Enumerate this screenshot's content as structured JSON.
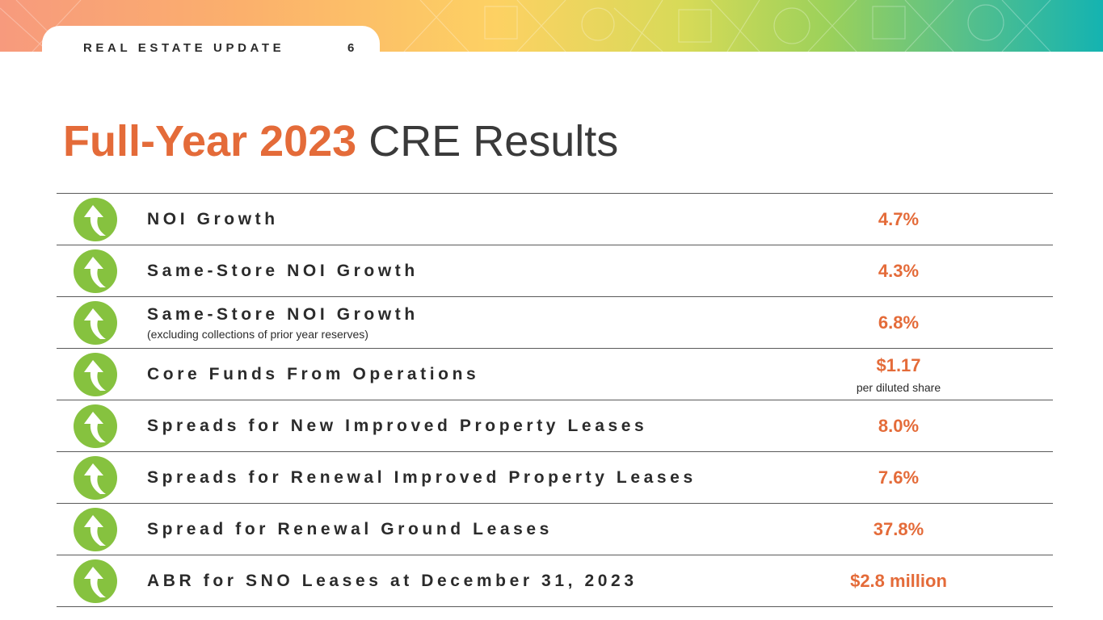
{
  "header": {
    "section_label": "REAL ESTATE UPDATE",
    "page_number": "6"
  },
  "title": {
    "highlight": "Full-Year 2023",
    "rest": "CRE Results"
  },
  "colors": {
    "accent": "#e46b39",
    "icon_green": "#86c23f",
    "text": "#2b2b2b"
  },
  "metrics": [
    {
      "label": "NOI Growth",
      "sublabel": "",
      "value": "4.7%",
      "note": "",
      "icon": "up-arrow-icon"
    },
    {
      "label": "Same-Store NOI Growth",
      "sublabel": "",
      "value": "4.3%",
      "note": "",
      "icon": "up-arrow-icon"
    },
    {
      "label": "Same-Store NOI Growth",
      "sublabel": "(excluding collections of prior year reserves)",
      "value": "6.8%",
      "note": "",
      "icon": "up-arrow-icon"
    },
    {
      "label": "Core Funds From Operations",
      "sublabel": "",
      "value": "$1.17",
      "note": "per diluted share",
      "icon": "up-arrow-icon"
    },
    {
      "label": "Spreads for New Improved Property Leases",
      "sublabel": "",
      "value": "8.0%",
      "note": "",
      "icon": "up-arrow-icon"
    },
    {
      "label": "Spreads for Renewal Improved Property Leases",
      "sublabel": "",
      "value": "7.6%",
      "note": "",
      "icon": "up-arrow-icon"
    },
    {
      "label": "Spread for Renewal Ground Leases",
      "sublabel": "",
      "value": "37.8%",
      "note": "",
      "icon": "up-arrow-icon"
    },
    {
      "label": "ABR for SNO Leases at December 31, 2023",
      "sublabel": "",
      "value": "$2.8 million",
      "note": "",
      "icon": "up-arrow-icon"
    }
  ]
}
